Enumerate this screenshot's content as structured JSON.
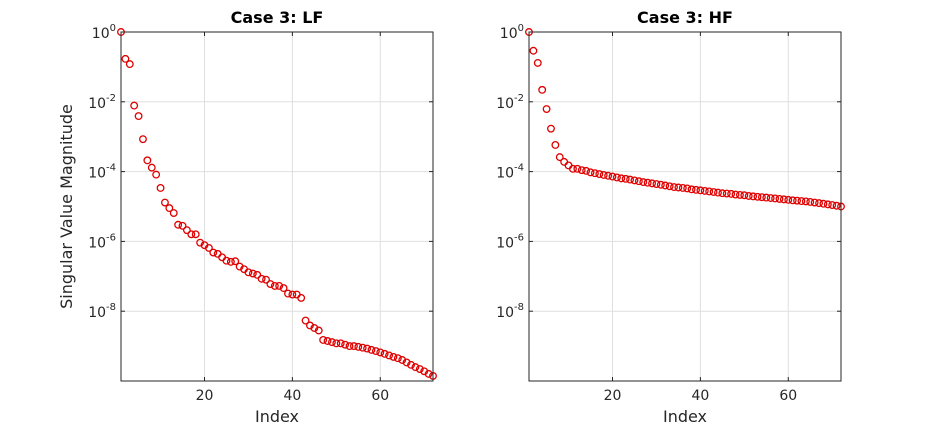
{
  "chart_data": [
    {
      "type": "scatter",
      "title": "Case 3: LF",
      "xlabel": "Index",
      "ylabel": "Singular Value Magnitude",
      "x_scale": "linear",
      "y_scale": "log",
      "xlim": [
        1,
        72
      ],
      "ylim": [
        1e-10,
        1
      ],
      "xticks": [
        20,
        40,
        60
      ],
      "xtick_labels": [
        "20",
        "40",
        "60"
      ],
      "yticks": [
        1e-08,
        1e-06,
        0.0001,
        0.01,
        1
      ],
      "ytick_labels": [
        {
          "base": "10",
          "exp": "-8"
        },
        {
          "base": "10",
          "exp": "-6"
        },
        {
          "base": "10",
          "exp": "-4"
        },
        {
          "base": "10",
          "exp": "-2"
        },
        {
          "base": "10",
          "exp": "0"
        }
      ],
      "grid": true,
      "marker": "circle",
      "marker_color": "#e00000",
      "series": [
        {
          "x": [
            1,
            2,
            3,
            4,
            5,
            6,
            7,
            8,
            9,
            10,
            11,
            12,
            13,
            14,
            15,
            16,
            17,
            18,
            19,
            20,
            21,
            22,
            23,
            24,
            25,
            26,
            27,
            28,
            29,
            30,
            31,
            32,
            33,
            34,
            35,
            36,
            37,
            38,
            39,
            40,
            41,
            42,
            43,
            44,
            45,
            46,
            47,
            48,
            49,
            50,
            51,
            52,
            53,
            54,
            55,
            56,
            57,
            58,
            59,
            60,
            61,
            62,
            63,
            64,
            65,
            66,
            67,
            68,
            69,
            70,
            71,
            72
          ],
          "y": [
            1.0,
            0.17,
            0.12,
            0.0078,
            0.0039,
            0.00085,
            0.00021,
            0.00013,
            8.2e-05,
            3.4e-05,
            1.3e-05,
            9e-06,
            6.5e-06,
            3e-06,
            2.8e-06,
            2.1e-06,
            1.6e-06,
            1.6e-06,
            9.2e-07,
            7.8e-07,
            6.5e-07,
            4.8e-07,
            4.4e-07,
            3.5e-07,
            2.8e-07,
            2.6e-07,
            2.7e-07,
            1.9e-07,
            1.6e-07,
            1.3e-07,
            1.2e-07,
            1.1e-07,
            8.5e-08,
            8e-08,
            6e-08,
            5.3e-08,
            5.3e-08,
            4.6e-08,
            3.2e-08,
            3e-08,
            3e-08,
            2.4e-08,
            5.4e-09,
            3.9e-09,
            3.3e-09,
            2.8e-09,
            1.5e-09,
            1.4e-09,
            1.3e-09,
            1.2e-09,
            1.2e-09,
            1.1e-09,
            1e-09,
            1e-09,
            9.5e-10,
            9e-10,
            8.5e-10,
            7.8e-10,
            7.2e-10,
            6.6e-10,
            6e-10,
            5.4e-10,
            4.9e-10,
            4.5e-10,
            4e-10,
            3.4e-10,
            2.9e-10,
            2.5e-10,
            2.2e-10,
            1.9e-10,
            1.6e-10,
            1.4e-10
          ]
        }
      ]
    },
    {
      "type": "scatter",
      "title": "Case 3: HF",
      "xlabel": "Index",
      "ylabel": "",
      "x_scale": "linear",
      "y_scale": "log",
      "xlim": [
        1,
        72
      ],
      "ylim": [
        1e-10,
        1
      ],
      "xticks": [
        20,
        40,
        60
      ],
      "xtick_labels": [
        "20",
        "40",
        "60"
      ],
      "yticks": [
        1e-08,
        1e-06,
        0.0001,
        0.01,
        1
      ],
      "ytick_labels": [
        {
          "base": "10",
          "exp": "-8"
        },
        {
          "base": "10",
          "exp": "-6"
        },
        {
          "base": "10",
          "exp": "-4"
        },
        {
          "base": "10",
          "exp": "-2"
        },
        {
          "base": "10",
          "exp": "0"
        }
      ],
      "grid": true,
      "marker": "circle",
      "marker_color": "#e00000",
      "series": [
        {
          "x": [
            1,
            2,
            3,
            4,
            5,
            6,
            7,
            8,
            9,
            10,
            11,
            12,
            13,
            14,
            15,
            16,
            17,
            18,
            19,
            20,
            21,
            22,
            23,
            24,
            25,
            26,
            27,
            28,
            29,
            30,
            31,
            32,
            33,
            34,
            35,
            36,
            37,
            38,
            39,
            40,
            41,
            42,
            43,
            44,
            45,
            46,
            47,
            48,
            49,
            50,
            51,
            52,
            53,
            54,
            55,
            56,
            57,
            58,
            59,
            60,
            61,
            62,
            63,
            64,
            65,
            66,
            67,
            68,
            69,
            70,
            71,
            72
          ],
          "y": [
            1.0,
            0.29,
            0.13,
            0.022,
            0.0062,
            0.0017,
            0.00058,
            0.00026,
            0.00019,
            0.00015,
            0.00012,
            0.00012,
            0.00011,
            0.000105,
            9.5e-05,
            9e-05,
            8.5e-05,
            8e-05,
            7.6e-05,
            7.2e-05,
            6.8e-05,
            6.4e-05,
            6.2e-05,
            5.9e-05,
            5.6e-05,
            5.3e-05,
            5e-05,
            4.8e-05,
            4.6e-05,
            4.4e-05,
            4.2e-05,
            4e-05,
            3.8e-05,
            3.6e-05,
            3.5e-05,
            3.4e-05,
            3.3e-05,
            3.1e-05,
            3e-05,
            2.9e-05,
            2.8e-05,
            2.7e-05,
            2.6e-05,
            2.5e-05,
            2.4e-05,
            2.35e-05,
            2.3e-05,
            2.2e-05,
            2.15e-05,
            2.1e-05,
            2e-05,
            1.95e-05,
            1.9e-05,
            1.85e-05,
            1.8e-05,
            1.75e-05,
            1.7e-05,
            1.65e-05,
            1.6e-05,
            1.55e-05,
            1.5e-05,
            1.47e-05,
            1.43e-05,
            1.4e-05,
            1.35e-05,
            1.3e-05,
            1.25e-05,
            1.2e-05,
            1.15e-05,
            1.1e-05,
            1.05e-05,
            1e-05
          ]
        }
      ]
    }
  ]
}
